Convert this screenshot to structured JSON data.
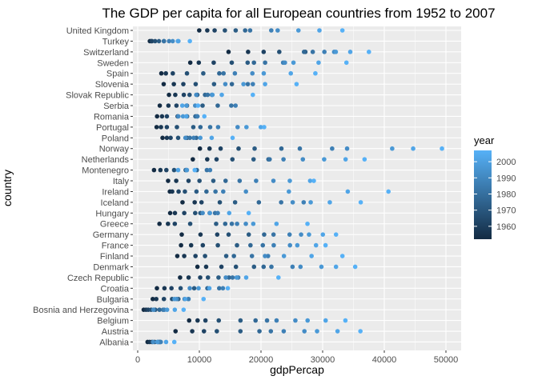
{
  "chart_data": {
    "type": "scatter",
    "title": "The GDP per capita for all European countries from 1952 to 2007",
    "xlabel": "gdpPercap",
    "ylabel": "country",
    "xlim": [
      0,
      50000
    ],
    "xticks": [
      0,
      10000,
      20000,
      30000,
      40000,
      50000
    ],
    "xtick_labels": [
      "0",
      "10000",
      "20000",
      "30000",
      "40000",
      "50000"
    ],
    "grid": true,
    "legend": {
      "title": "year",
      "placement": "right",
      "range": [
        1952,
        2007
      ],
      "ticks": [
        1960,
        1970,
        1980,
        1990,
        2000
      ],
      "low_color": "#132B43",
      "high_color": "#56B1F7"
    },
    "panel_background": "#EBEBEB",
    "grid_color": "#FFFFFF",
    "years": [
      1952,
      1957,
      1962,
      1967,
      1972,
      1977,
      1982,
      1987,
      1992,
      1997,
      2002,
      2007
    ],
    "categories": [
      "Albania",
      "Austria",
      "Belgium",
      "Bosnia and Herzegovina",
      "Bulgaria",
      "Croatia",
      "Czech Republic",
      "Denmark",
      "Finland",
      "France",
      "Germany",
      "Greece",
      "Hungary",
      "Iceland",
      "Ireland",
      "Italy",
      "Montenegro",
      "Netherlands",
      "Norway",
      "Poland",
      "Portugal",
      "Romania",
      "Serbia",
      "Slovak Republic",
      "Slovenia",
      "Spain",
      "Sweden",
      "Switzerland",
      "Turkey",
      "United Kingdom"
    ],
    "series": [
      {
        "country": "Albania",
        "values": [
          1601,
          1942,
          2313,
          2760,
          3313,
          3533,
          3631,
          3739,
          2497,
          3193,
          4604,
          5937
        ]
      },
      {
        "country": "Austria",
        "values": [
          6137,
          8843,
          10751,
          12835,
          16662,
          19749,
          21597,
          23688,
          27042,
          29096,
          32418,
          36126
        ]
      },
      {
        "country": "Belgium",
        "values": [
          8343,
          9715,
          10991,
          13149,
          16672,
          19118,
          20980,
          22526,
          25576,
          27561,
          30486,
          33693
        ]
      },
      {
        "country": "Bosnia and Herzegovina",
        "values": [
          974,
          1354,
          1710,
          2172,
          2860,
          3528,
          4127,
          4314,
          2547,
          4766,
          6019,
          7446
        ]
      },
      {
        "country": "Bulgaria",
        "values": [
          2444,
          3009,
          4255,
          5578,
          6598,
          7612,
          8224,
          8239,
          6303,
          5970,
          7697,
          10681
        ]
      },
      {
        "country": "Croatia",
        "values": [
          3119,
          4338,
          5478,
          6960,
          9164,
          11305,
          13222,
          13823,
          8448,
          9876,
          11628,
          14619
        ]
      },
      {
        "country": "Czech Republic",
        "values": [
          6876,
          8256,
          10137,
          11399,
          13108,
          14800,
          15377,
          16310,
          14297,
          16049,
          17596,
          22833
        ]
      },
      {
        "country": "Denmark",
        "values": [
          9692,
          11100,
          13583,
          15937,
          18866,
          20423,
          21689,
          25116,
          26407,
          29804,
          32167,
          35278
        ]
      },
      {
        "country": "Finland",
        "values": [
          6424,
          7545,
          9372,
          10922,
          14359,
          15605,
          18533,
          21141,
          20647,
          23724,
          28205,
          33207
        ]
      },
      {
        "country": "France",
        "values": [
          7030,
          8663,
          10560,
          13000,
          16107,
          18293,
          20294,
          22066,
          24704,
          25890,
          28926,
          30470
        ]
      },
      {
        "country": "Germany",
        "values": [
          7144,
          10188,
          12902,
          14746,
          18016,
          20513,
          22032,
          24639,
          26505,
          27789,
          30036,
          32170
        ]
      },
      {
        "country": "Greece",
        "values": [
          3531,
          4916,
          6017,
          8513,
          12725,
          14196,
          15268,
          16121,
          17541,
          18748,
          22514,
          27538
        ]
      },
      {
        "country": "Hungary",
        "values": [
          5264,
          6040,
          7550,
          9326,
          10168,
          11675,
          12546,
          12986,
          10536,
          11712,
          14843,
          18009
        ]
      },
      {
        "country": "Iceland",
        "values": [
          7268,
          9244,
          10350,
          13320,
          15798,
          19655,
          23270,
          26923,
          25144,
          28061,
          31163,
          36181
        ]
      },
      {
        "country": "Ireland",
        "values": [
          5211,
          5599,
          6632,
          7656,
          9531,
          11151,
          12618,
          13873,
          17559,
          24522,
          34077,
          40676
        ]
      },
      {
        "country": "Italy",
        "values": [
          4931,
          6249,
          8244,
          10022,
          12269,
          14256,
          16537,
          19208,
          22014,
          24675,
          27968,
          28570
        ]
      },
      {
        "country": "Montenegro",
        "values": [
          2648,
          3682,
          4649,
          5907,
          7779,
          9596,
          11223,
          11733,
          7980,
          7940,
          6558,
          9254
        ]
      },
      {
        "country": "Netherlands",
        "values": [
          8942,
          11277,
          12791,
          15363,
          18795,
          21209,
          21400,
          23651,
          26791,
          30246,
          33725,
          36798
        ]
      },
      {
        "country": "Norway",
        "values": [
          10095,
          11654,
          13450,
          16362,
          18965,
          23312,
          26299,
          31541,
          33966,
          41283,
          44684,
          49357
        ]
      },
      {
        "country": "Poland",
        "values": [
          4029,
          4734,
          5339,
          6557,
          8006,
          9508,
          8452,
          9082,
          7739,
          10160,
          12002,
          15390
        ]
      },
      {
        "country": "Portugal",
        "values": [
          3068,
          3775,
          4728,
          6361,
          9022,
          10172,
          11754,
          13039,
          16207,
          17641,
          19971,
          20510
        ]
      },
      {
        "country": "Romania",
        "values": [
          3145,
          3943,
          4735,
          6471,
          8011,
          9357,
          9605,
          9697,
          6599,
          7347,
          7886,
          10808
        ]
      },
      {
        "country": "Serbia",
        "values": [
          3581,
          4981,
          6290,
          7991,
          10523,
          12980,
          15181,
          15870,
          9325,
          7914,
          7236,
          9787
        ]
      },
      {
        "country": "Slovak Republic",
        "values": [
          5075,
          6094,
          7481,
          8412,
          9675,
          10923,
          11348,
          12037,
          9498,
          12127,
          13639,
          18678
        ]
      },
      {
        "country": "Slovenia",
        "values": [
          4215,
          5862,
          7402,
          9405,
          12383,
          15277,
          17866,
          18679,
          14214,
          17161,
          20660,
          25768
        ]
      },
      {
        "country": "Spain",
        "values": [
          3834,
          4565,
          5694,
          7993,
          10639,
          13237,
          13926,
          15765,
          18603,
          20445,
          24835,
          28821
        ]
      },
      {
        "country": "Sweden",
        "values": [
          8527,
          9912,
          12329,
          15258,
          17832,
          18856,
          20667,
          23587,
          23880,
          25267,
          29342,
          33860
        ]
      },
      {
        "country": "Switzerland",
        "values": [
          14734,
          17909,
          20431,
          22966,
          27195,
          26982,
          28397,
          30282,
          31871,
          32135,
          34481,
          37506
        ]
      },
      {
        "country": "Turkey",
        "values": [
          1969,
          2218,
          2323,
          2826,
          3450,
          4269,
          4241,
          5089,
          5678,
          6601,
          6508,
          8458
        ]
      },
      {
        "country": "United Kingdom",
        "values": [
          9980,
          11283,
          12477,
          14143,
          15895,
          17429,
          18232,
          21665,
          22705,
          26074,
          29479,
          33203
        ]
      }
    ]
  }
}
